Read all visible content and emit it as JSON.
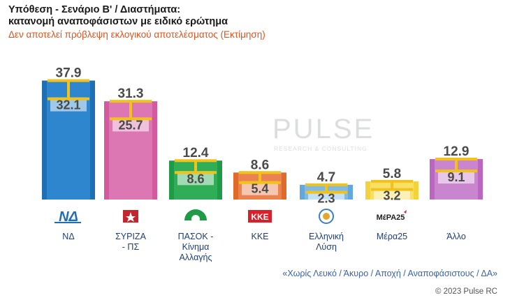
{
  "header": {
    "title_line1": "Υπόθεση - Σενάριο Β' / Διαστήματα:",
    "title_line2": "κατανομή αναποφάσιστων με ειδικό ερώτημα",
    "subtitle": "Δεν αποτελεί πρόβλεψη εκλογικού αποτελέσματος   (Εκτίμηση)"
  },
  "watermark": {
    "brand": "PULSE",
    "tagline": "RESEARCH & CONSULTING"
  },
  "chart_data": {
    "type": "bar",
    "categories": [
      "ΝΔ",
      "ΣΥΡΙΖΑ - ΠΣ",
      "ΠΑΣΟΚ - Κίνημα Αλλαγής",
      "ΚΚΕ",
      "Ελληνική Λύση",
      "Μέρα25",
      "Άλλο"
    ],
    "category_lines": [
      [
        "ΝΔ"
      ],
      [
        "ΣΥΡΙΖΑ",
        "- ΠΣ"
      ],
      [
        "ΠΑΣΟΚ -",
        "Κίνημα",
        "Αλλαγής"
      ],
      [
        "ΚΚΕ"
      ],
      [
        "Ελληνική",
        "Λύση"
      ],
      [
        "Μέρα25"
      ],
      [
        "Άλλο"
      ]
    ],
    "series": [
      {
        "values": [
          37.9,
          31.3,
          12.4,
          8.6,
          4.7,
          5.8,
          12.9
        ]
      },
      {
        "values": [
          32.1,
          25.7,
          8.6,
          5.4,
          2.3,
          3.2,
          9.1
        ]
      }
    ],
    "upper_labels": [
      "37.9",
      "31.3",
      "12.4",
      "8.6",
      "4.7",
      "5.8",
      "12.9"
    ],
    "lower_labels": [
      "32.1",
      "25.7",
      "8.6",
      "5.4",
      "2.3",
      "3.2",
      "9.1"
    ],
    "colors": [
      "#1f6fb5",
      "#d35a9e",
      "#1f9a47",
      "#e06a2a",
      "#62a8dc",
      "#f2d33c",
      "#bb67c2"
    ],
    "light_colors": [
      "#2e86cf",
      "#dd77b3",
      "#2fae57",
      "#ea8350",
      "#7dbbe6",
      "#f7e063",
      "#c986cf"
    ],
    "range_color": "#f1c21b",
    "ylim": [
      0,
      40
    ],
    "grid": false,
    "logos": [
      "ΝΔ",
      "",
      "",
      "KKE",
      "",
      "ΜέΡΑ25",
      ""
    ]
  },
  "footer": {
    "note": "«Χωρίς Λευκό / Άκυρο / Αποχή / Αναποφάσιστους / ΔΑ»",
    "copyright": "© 2023 Pulse RC"
  }
}
